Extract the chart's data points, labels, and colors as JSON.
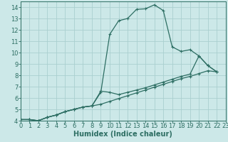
{
  "xlabel": "Humidex (Indice chaleur)",
  "bg_color": "#cce8e8",
  "grid_color": "#aacfcf",
  "line_color": "#2d6e63",
  "xlim": [
    0,
    23
  ],
  "ylim": [
    4,
    14.5
  ],
  "xticks": [
    0,
    1,
    2,
    3,
    4,
    5,
    6,
    7,
    8,
    9,
    10,
    11,
    12,
    13,
    14,
    15,
    16,
    17,
    18,
    19,
    20,
    21,
    22,
    23
  ],
  "yticks": [
    4,
    5,
    6,
    7,
    8,
    9,
    10,
    11,
    12,
    13,
    14
  ],
  "line1_x": [
    0,
    1,
    2,
    3,
    4,
    5,
    6,
    7,
    8,
    9,
    10,
    11,
    12,
    13,
    14,
    15,
    16,
    17,
    18,
    19,
    20,
    21,
    22
  ],
  "line1_y": [
    4.1,
    4.1,
    4.0,
    4.3,
    4.5,
    4.8,
    5.0,
    5.2,
    5.3,
    6.5,
    11.6,
    12.8,
    13.0,
    13.8,
    13.85,
    14.2,
    13.7,
    10.5,
    10.1,
    10.25,
    9.7,
    8.85,
    8.3
  ],
  "line2_x": [
    0,
    1,
    2,
    3,
    4,
    5,
    6,
    7,
    8,
    9,
    10,
    11,
    12,
    13,
    14,
    15,
    16,
    17,
    18,
    19,
    20,
    21,
    22
  ],
  "line2_y": [
    4.1,
    4.1,
    4.0,
    4.3,
    4.5,
    4.8,
    5.0,
    5.2,
    5.3,
    5.45,
    5.7,
    5.95,
    6.2,
    6.45,
    6.7,
    6.95,
    7.2,
    7.45,
    7.7,
    7.9,
    8.15,
    8.4,
    8.3
  ],
  "line3_x": [
    0,
    1,
    2,
    3,
    4,
    5,
    6,
    7,
    8,
    9,
    10,
    11,
    12,
    13,
    14,
    15,
    16,
    17,
    18,
    19,
    20,
    21,
    22
  ],
  "line3_y": [
    4.1,
    4.1,
    4.0,
    4.3,
    4.5,
    4.8,
    5.0,
    5.2,
    5.3,
    6.6,
    6.5,
    6.3,
    6.5,
    6.7,
    6.9,
    7.15,
    7.4,
    7.65,
    7.9,
    8.1,
    9.7,
    8.85,
    8.3
  ],
  "marker": "+",
  "markersize": 3.0,
  "linewidth": 0.9,
  "xlabel_fontsize": 7.0,
  "tick_fontsize": 6.0
}
